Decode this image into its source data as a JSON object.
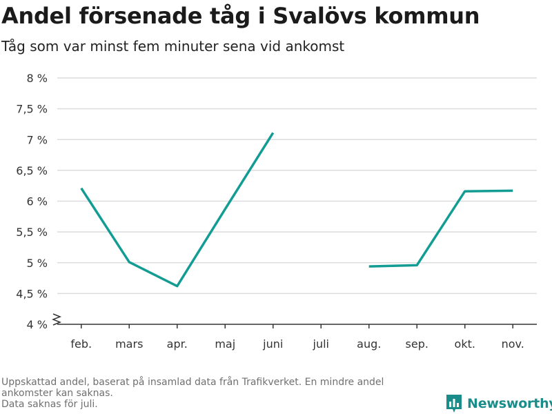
{
  "title": "Andel försenade tåg i Svalövs kommun",
  "subtitle": "Tåg som var minst fem minuter sena vid ankomst",
  "footnote": {
    "line1": "Uppskattad andel, baserat på insamlad data från Trafikverket. En mindre andel",
    "line2": "ankomster kan saknas.",
    "line3": "Data saknas för juli."
  },
  "brand": {
    "name": "Newsworthy",
    "icon": "bar-chart-logo-icon"
  },
  "colors": {
    "line": "#139c94",
    "grid": "#dcdcdc",
    "axis": "#333333",
    "brand": "#1a8c8a"
  },
  "chart_data": {
    "type": "line",
    "categories": [
      "feb.",
      "mars",
      "apr.",
      "maj",
      "juni",
      "juli",
      "aug.",
      "sep.",
      "okt.",
      "nov."
    ],
    "series": [
      {
        "values": [
          6.21,
          5.01,
          4.62,
          5.87,
          7.11,
          null,
          4.94,
          4.96,
          6.16,
          6.17
        ]
      }
    ],
    "ylim": [
      4,
      8
    ],
    "yticks": [
      4,
      4.5,
      5,
      5.5,
      6,
      6.5,
      7,
      7.5,
      8
    ],
    "ytick_labels": [
      "4 %",
      "4,5 %",
      "5 %",
      "5,5 %",
      "6 %",
      "6,5 %",
      "7 %",
      "7,5 %",
      "8 %"
    ],
    "grid": true,
    "axis_break": true
  }
}
